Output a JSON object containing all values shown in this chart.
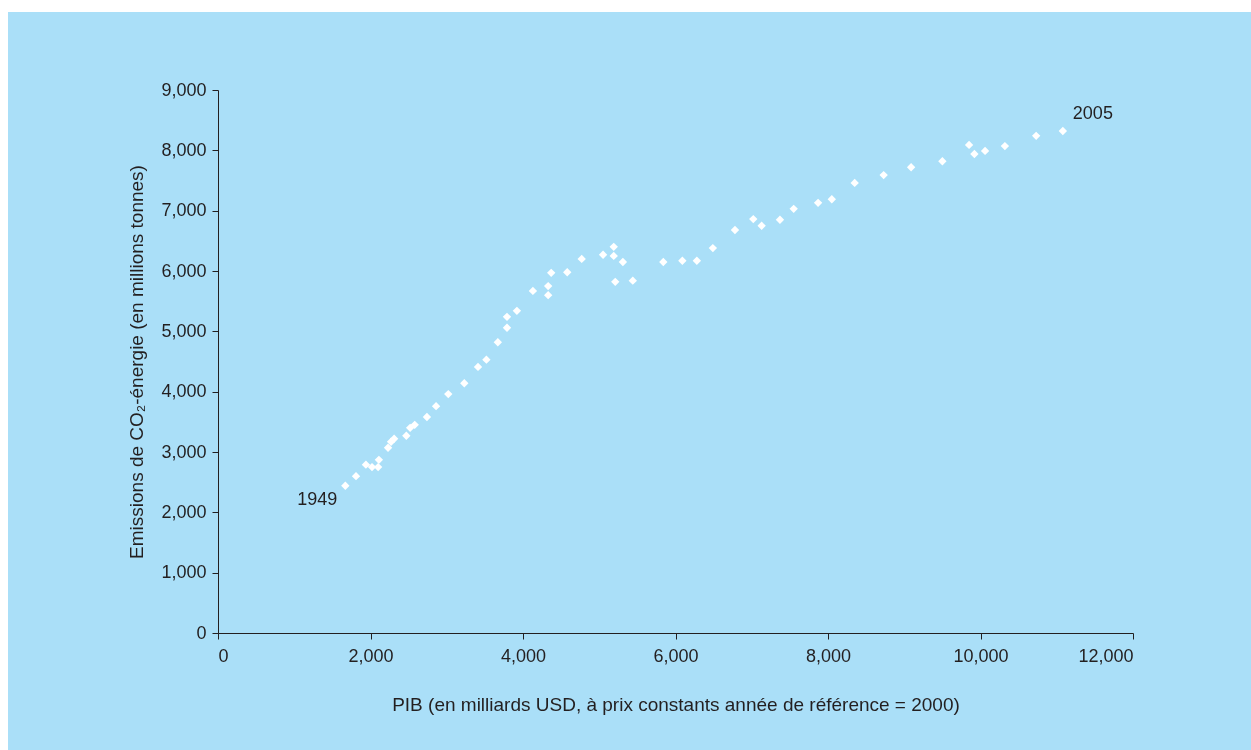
{
  "chart_data": {
    "type": "scatter",
    "xlabel": "PIB (en milliards USD, à prix constants année de référence = 2000)",
    "ylabel": "Emissions de CO₂-énergie (en millions tonnes)",
    "x": [
      1670,
      1810,
      1940,
      2020,
      2100,
      2110,
      2230,
      2270,
      2310,
      2470,
      2520,
      2580,
      2740,
      2860,
      3020,
      3230,
      3410,
      3520,
      3670,
      3790,
      3790,
      3920,
      4130,
      4330,
      4330,
      4370,
      4580,
      4770,
      5050,
      5190,
      5190,
      5310,
      5210,
      5440,
      5840,
      6090,
      6280,
      6490,
      6780,
      7020,
      7130,
      7370,
      7550,
      7870,
      8050,
      8350,
      8730,
      9090,
      9500,
      9850,
      9920,
      10060,
      10320,
      10730,
      11080
    ],
    "series": [
      {
        "color": "#ffffff",
        "values": [
          2440,
          2600,
          2790,
          2750,
          2750,
          2870,
          3070,
          3170,
          3220,
          3270,
          3400,
          3450,
          3580,
          3760,
          3960,
          4140,
          4410,
          4530,
          4820,
          5060,
          5240,
          5340,
          5670,
          5600,
          5750,
          5970,
          5980,
          6200,
          6270,
          6400,
          6250,
          6150,
          5820,
          5840,
          6150,
          6170,
          6170,
          6380,
          6680,
          6860,
          6750,
          6850,
          7030,
          7130,
          7190,
          7460,
          7590,
          7720,
          7820,
          8090,
          7940,
          7990,
          8070,
          8240,
          8320
        ]
      }
    ],
    "xlim": [
      0,
      12000
    ],
    "xticks": [
      0,
      {
        "value": 2000,
        "label": "2,000"
      },
      {
        "value": 4000,
        "label": "4,000"
      },
      {
        "value": 6000,
        "label": "6,000"
      },
      {
        "value": 8000,
        "label": "8,000"
      },
      {
        "value": 10000,
        "label": "10,000"
      },
      {
        "value": 12000,
        "label": "12,000"
      }
    ],
    "ylim": [
      0,
      9000
    ],
    "yticks": [
      0,
      {
        "value": 1000,
        "label": "1,000"
      },
      {
        "value": 2000,
        "label": "2,000"
      },
      {
        "value": 3000,
        "label": "3,000"
      },
      {
        "value": 4000,
        "label": "4,000"
      },
      {
        "value": 5000,
        "label": "5,000"
      },
      {
        "value": 6000,
        "label": "6,000"
      },
      {
        "value": 7000,
        "label": "7,000"
      },
      {
        "value": 8000,
        "label": "8,000"
      },
      {
        "value": 9000,
        "label": "9,000"
      }
    ],
    "annotations": [
      {
        "text": "1949",
        "x": 1670,
        "y": 2440
      },
      {
        "text": "2005",
        "x": 11080,
        "y": 8320
      }
    ],
    "marker": "diamond",
    "grid": false
  }
}
